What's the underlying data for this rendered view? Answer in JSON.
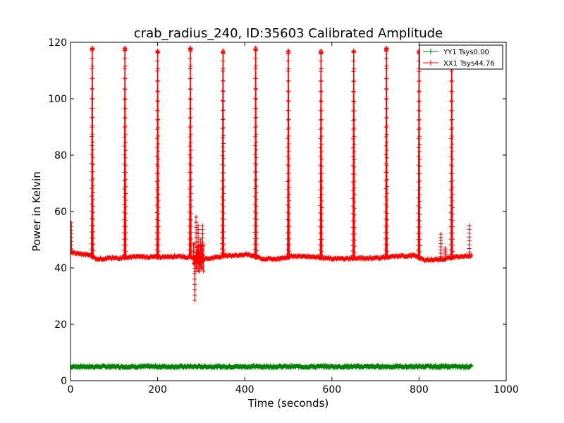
{
  "chart_data": {
    "type": "line",
    "title": "crab_radius_240, ID:35603 Calibrated Amplitude",
    "xlabel": "Time (seconds)",
    "ylabel": "Power in Kelvin",
    "xlim": [
      0,
      1000
    ],
    "ylim": [
      0,
      120
    ],
    "xticks": [
      0,
      200,
      400,
      600,
      800,
      1000
    ],
    "yticks": [
      0,
      20,
      40,
      60,
      80,
      100,
      120
    ],
    "xtick_labels": [
      "0",
      "200",
      "400",
      "600",
      "800",
      "1000"
    ],
    "ytick_labels": [
      "0",
      "20",
      "40",
      "60",
      "80",
      "100",
      "120"
    ],
    "grid": false,
    "legend_position": "top-right",
    "series": [
      {
        "name": "YY1 Tsys0.00",
        "color": "#008000",
        "marker": "+",
        "x_range": [
          0,
          920
        ],
        "value": 5
      },
      {
        "name": "XX1 Tsys44.76",
        "color": "#ff0000",
        "marker": "+",
        "x_range": [
          0,
          920
        ],
        "baseline": [
          [
            0,
            45.5
          ],
          [
            20,
            45
          ],
          [
            45,
            44.5
          ],
          [
            60,
            43.2
          ],
          [
            110,
            43.5
          ],
          [
            150,
            44
          ],
          [
            200,
            43.8
          ],
          [
            250,
            44.2
          ],
          [
            270,
            43.8
          ],
          [
            310,
            43.2
          ],
          [
            360,
            44.4
          ],
          [
            410,
            44.7
          ],
          [
            440,
            43.2
          ],
          [
            480,
            43.2
          ],
          [
            510,
            44.2
          ],
          [
            560,
            44
          ],
          [
            600,
            43.2
          ],
          [
            650,
            43.4
          ],
          [
            700,
            43.5
          ],
          [
            760,
            44.2
          ],
          [
            790,
            44.3
          ],
          [
            810,
            42.9
          ],
          [
            860,
            43
          ],
          [
            880,
            44
          ],
          [
            920,
            44.2
          ]
        ],
        "peaks": [
          {
            "x": 50,
            "y": 118
          },
          {
            "x": 125,
            "y": 118
          },
          {
            "x": 200,
            "y": 117
          },
          {
            "x": 275,
            "y": 118
          },
          {
            "x": 350,
            "y": 117
          },
          {
            "x": 425,
            "y": 118
          },
          {
            "x": 500,
            "y": 117
          },
          {
            "x": 575,
            "y": 117
          },
          {
            "x": 650,
            "y": 117
          },
          {
            "x": 725,
            "y": 118
          },
          {
            "x": 800,
            "y": 117
          },
          {
            "x": 875,
            "y": 117
          }
        ],
        "spikes": [
          {
            "x": 2,
            "y": 56
          },
          {
            "x": 285,
            "y": 28.5
          },
          {
            "x": 288,
            "y": 58
          },
          {
            "x": 293,
            "y": 55
          },
          {
            "x": 298,
            "y": 50
          },
          {
            "x": 303,
            "y": 55
          },
          {
            "x": 850,
            "y": 52
          },
          {
            "x": 860,
            "y": 47
          },
          {
            "x": 915,
            "y": 55
          }
        ]
      }
    ]
  }
}
